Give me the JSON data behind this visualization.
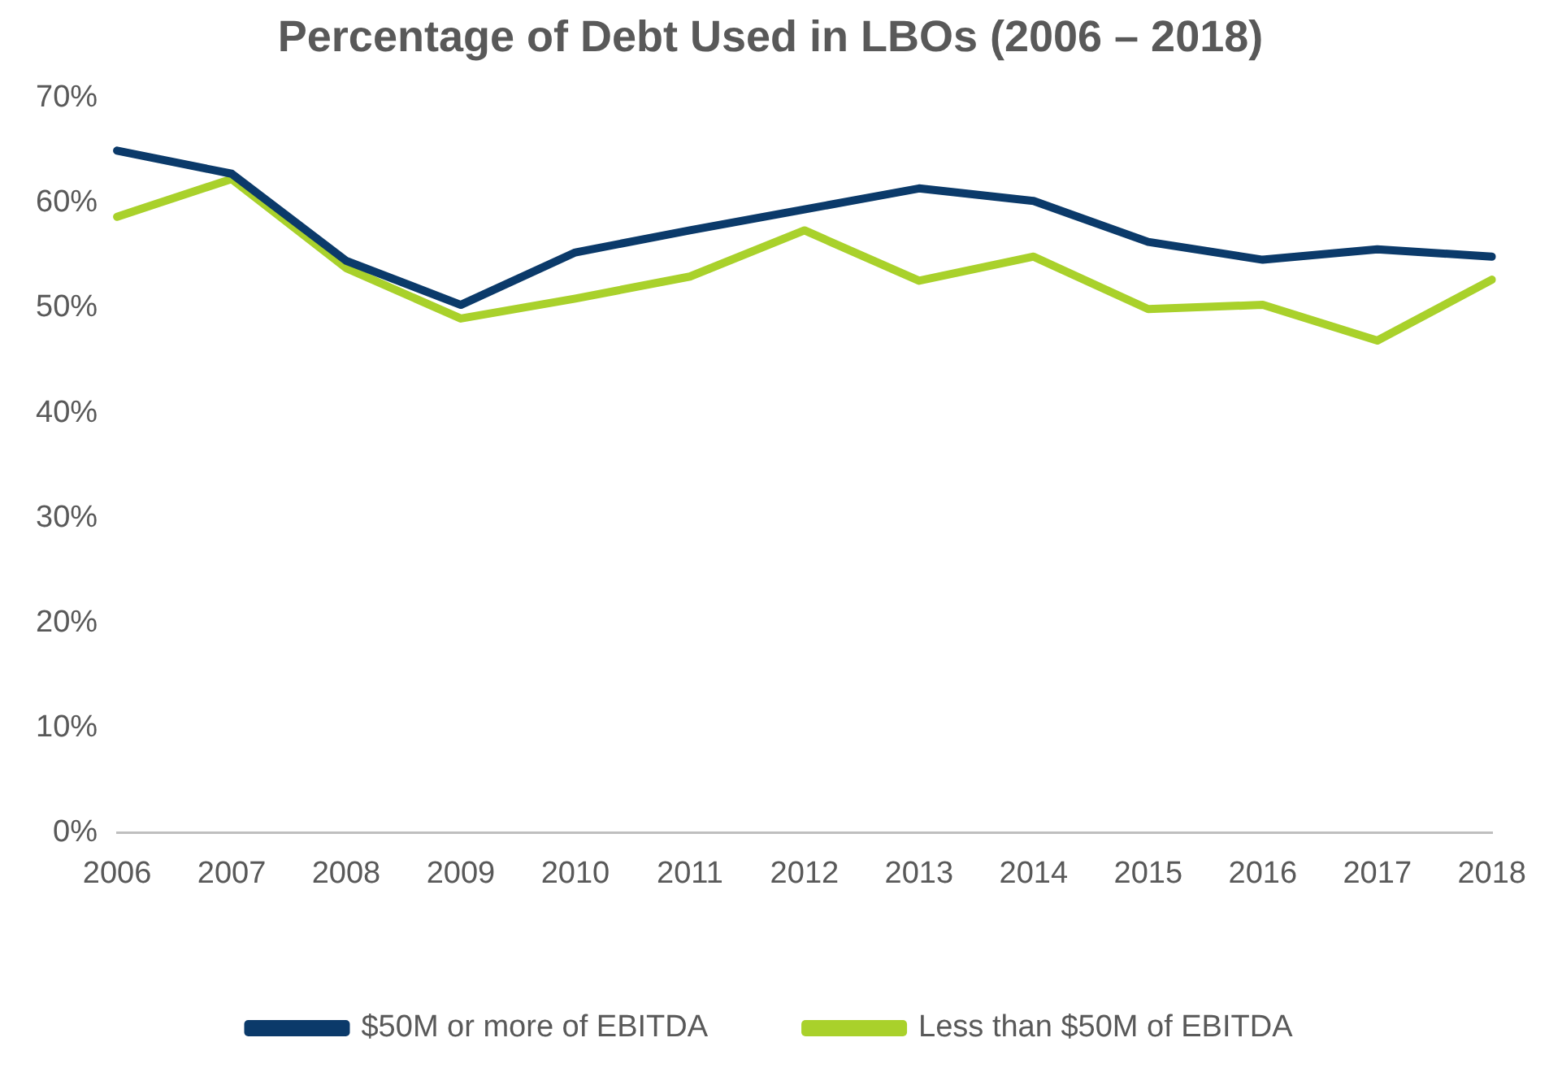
{
  "chart_data": {
    "type": "line",
    "title": "Percentage of Debt Used in LBOs (2006 – 2018)",
    "categories": [
      "2006",
      "2007",
      "2008",
      "2009",
      "2010",
      "2011",
      "2012",
      "2013",
      "2014",
      "2015",
      "2016",
      "2017",
      "2018"
    ],
    "series": [
      {
        "name": "$50M or more of EBITDA",
        "color": "#0b3a6a",
        "values": [
          65.0,
          62.8,
          54.5,
          50.3,
          55.3,
          57.4,
          59.4,
          61.4,
          60.2,
          56.3,
          54.6,
          55.6,
          54.9
        ]
      },
      {
        "name": "Less than $50M of EBITDA",
        "color": "#a9d12b",
        "values": [
          58.7,
          62.3,
          53.8,
          49.0,
          50.9,
          53.0,
          57.4,
          52.6,
          54.9,
          49.9,
          50.3,
          46.9,
          52.7
        ]
      }
    ],
    "ylim": [
      0,
      70
    ],
    "yticks": [
      {
        "value": 0,
        "label": "0%"
      },
      {
        "value": 10,
        "label": "10%"
      },
      {
        "value": 20,
        "label": "20%"
      },
      {
        "value": 30,
        "label": "30%"
      },
      {
        "value": 40,
        "label": "40%"
      },
      {
        "value": 50,
        "label": "50%"
      },
      {
        "value": 60,
        "label": "60%"
      },
      {
        "value": 70,
        "label": "70%"
      }
    ],
    "grid": false,
    "legend": "bottom",
    "marker": "none",
    "line_style": "solid"
  }
}
